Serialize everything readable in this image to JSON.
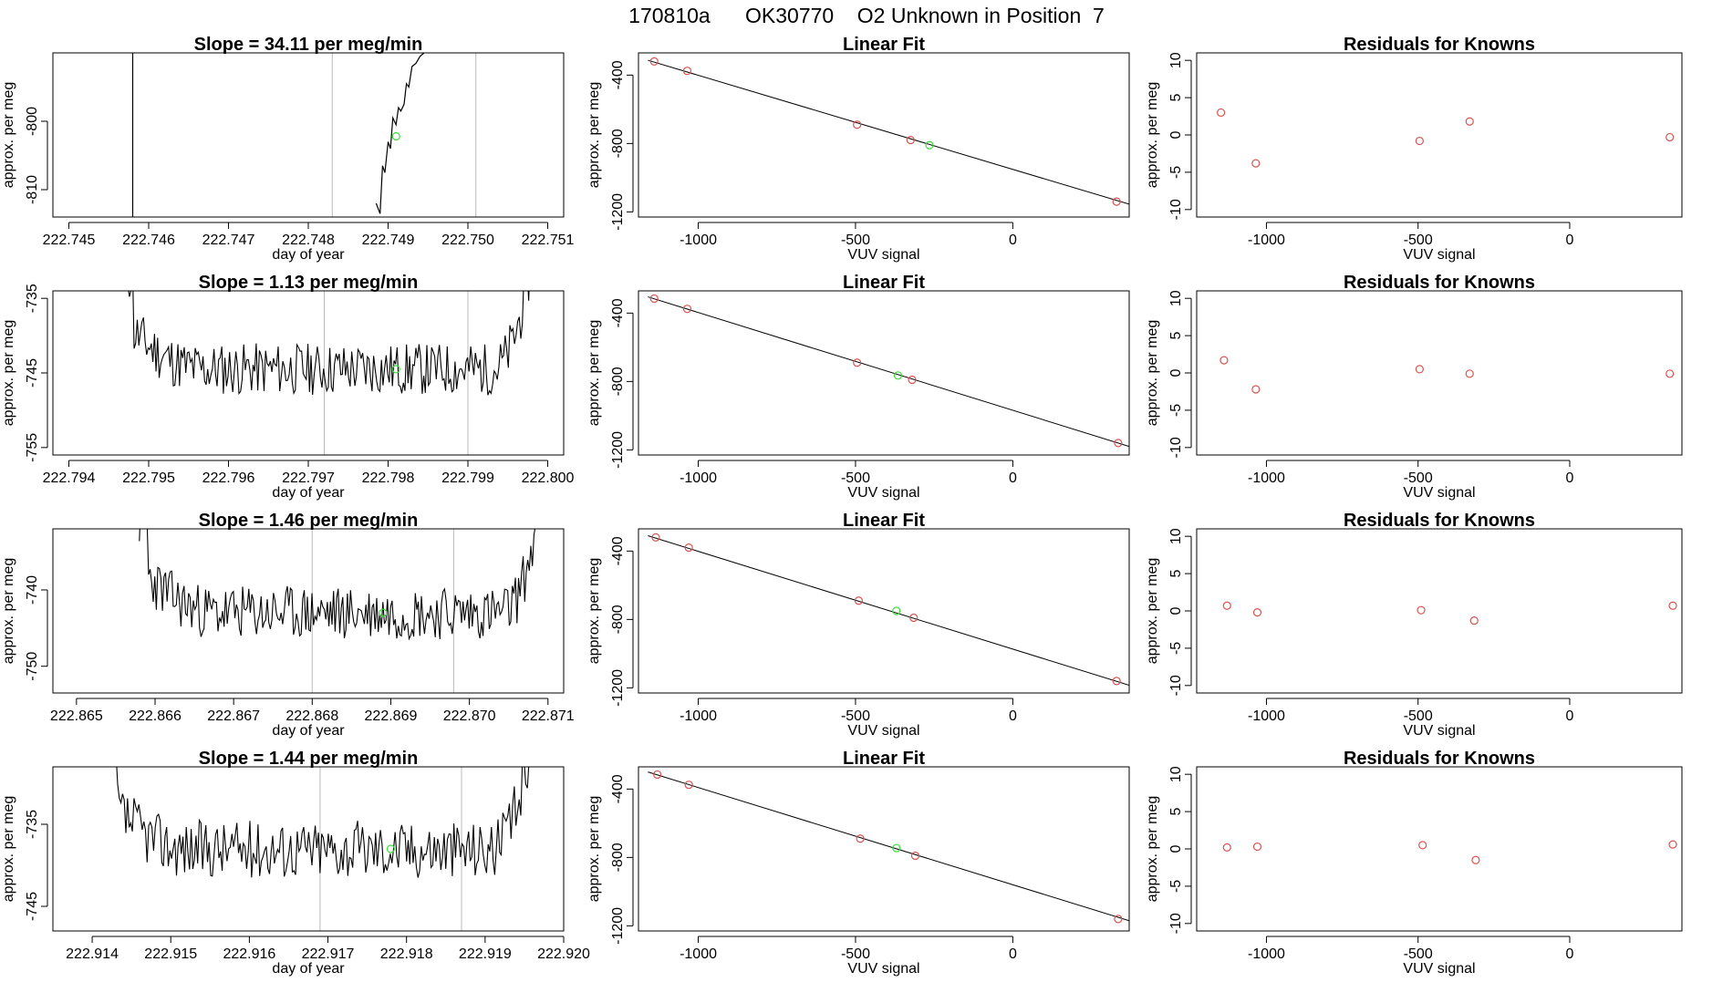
{
  "main_title": "170810a      OK30770    O2 Unknown in Position  7",
  "colors": {
    "known": "#d9534f",
    "unknown": "#3adf3a",
    "line": "#000000",
    "guide": "#bbbbbb"
  },
  "chart_data": [
    {
      "type": "line",
      "panel": "timeseries",
      "row": 1,
      "title": "Slope =  34.11  per meg/min",
      "xlabel": "day of year",
      "ylabel": "approx. per meg",
      "xlim": [
        222.7448,
        222.7512
      ],
      "ylim": [
        -814,
        -790
      ],
      "xticks": [
        222.745,
        222.746,
        222.747,
        222.748,
        222.749,
        222.75,
        222.751
      ],
      "xtick_labels": [
        "222.745",
        "222.746",
        "222.747",
        "222.748",
        "222.749",
        "222.750",
        "222.751"
      ],
      "yticks": [
        -800,
        -810
      ],
      "ytick_labels": [
        "-800",
        "-810"
      ],
      "vlines": [
        222.7483,
        222.7501
      ],
      "series": [
        {
          "x": [
            222.7458,
            222.7458
          ],
          "y": [
            -780,
            -820
          ]
        },
        {
          "x": [
            222.74885,
            222.7489,
            222.74893,
            222.74896,
            222.749,
            222.74903,
            222.74906,
            222.7491,
            222.74913,
            222.74916,
            222.7492,
            222.74923,
            222.74926,
            222.7493,
            222.74935,
            222.7494,
            222.74945
          ],
          "y": [
            -812,
            -813.5,
            -806.5,
            -807.5,
            -803,
            -804,
            -799.5,
            -800.5,
            -798,
            -798.5,
            -797.5,
            -794.5,
            -795,
            -792,
            -791.5,
            -790.5,
            -790
          ]
        }
      ],
      "unknown_points": [
        {
          "x": 222.7491,
          "y": -802.2
        }
      ]
    },
    {
      "type": "scatter",
      "panel": "fit",
      "row": 1,
      "title": "Linear Fit",
      "xlabel": "VUV signal",
      "ylabel": "approx. per meg",
      "xlim": [
        -1190,
        370
      ],
      "ylim": [
        -1230,
        -270
      ],
      "xticks": [
        -1000,
        -500,
        0
      ],
      "xtick_labels": [
        "-1000",
        "-500",
        "0"
      ],
      "yticks": [
        -400,
        -800,
        -1200
      ],
      "ytick_labels": [
        "-400",
        "-800",
        "-1200"
      ],
      "fit_line": {
        "x": [
          -1160,
          370
        ],
        "y": [
          -313,
          -1155
        ]
      },
      "known_points": [
        {
          "x": -1140,
          "y": -320
        },
        {
          "x": -1035,
          "y": -375
        },
        {
          "x": -495,
          "y": -690
        },
        {
          "x": -325,
          "y": -780
        },
        {
          "x": 330,
          "y": -1140
        }
      ],
      "unknown_points": [
        {
          "x": -265,
          "y": -810
        }
      ]
    },
    {
      "type": "scatter",
      "panel": "residuals",
      "row": 1,
      "title": "Residuals for Knowns",
      "xlabel": "VUV signal",
      "ylabel": "approx. per meg",
      "xlim": [
        -1230,
        370
      ],
      "ylim": [
        -11,
        11
      ],
      "xticks": [
        -1000,
        -500,
        0
      ],
      "xtick_labels": [
        "-1000",
        "-500",
        "0"
      ],
      "yticks": [
        10,
        5,
        0,
        -5,
        -10
      ],
      "ytick_labels": [
        "10",
        "5",
        "0",
        "-5",
        "-10"
      ],
      "known_points": [
        {
          "x": -1150,
          "y": 3
        },
        {
          "x": -1035,
          "y": -3.8
        },
        {
          "x": -495,
          "y": -0.8
        },
        {
          "x": -330,
          "y": 1.8
        },
        {
          "x": 330,
          "y": -0.3
        }
      ]
    },
    {
      "type": "line",
      "panel": "timeseries",
      "row": 2,
      "title": "Slope =  1.13  per meg/min",
      "xlabel": "day of year",
      "ylabel": "approx. per meg",
      "xlim": [
        222.7938,
        222.8002
      ],
      "ylim": [
        -756,
        -734
      ],
      "xticks": [
        222.794,
        222.795,
        222.796,
        222.797,
        222.798,
        222.799,
        222.8
      ],
      "xtick_labels": [
        "222.794",
        "222.795",
        "222.796",
        "222.797",
        "222.798",
        "222.799",
        "222.800"
      ],
      "yticks": [
        -735,
        -745,
        -755
      ],
      "ytick_labels": [
        "-735",
        "-745",
        "-755"
      ],
      "vlines": [
        222.7972,
        222.799
      ],
      "noise": {
        "start": 222.7947,
        "end": 222.7998,
        "floor": -744.5,
        "edge_top": -734,
        "amp": 2.2,
        "seed": 11
      },
      "unknown_points": [
        {
          "x": 222.7981,
          "y": -744.5
        }
      ]
    },
    {
      "type": "scatter",
      "panel": "fit",
      "row": 2,
      "title": "Linear Fit",
      "xlabel": "VUV signal",
      "ylabel": "approx. per meg",
      "xlim": [
        -1190,
        370
      ],
      "ylim": [
        -1230,
        -270
      ],
      "xticks": [
        -1000,
        -500,
        0
      ],
      "xtick_labels": [
        "-1000",
        "-500",
        "0"
      ],
      "yticks": [
        -400,
        -800,
        -1200
      ],
      "ytick_labels": [
        "-400",
        "-800",
        "-1200"
      ],
      "fit_line": {
        "x": [
          -1160,
          370
        ],
        "y": [
          -305,
          -1180
        ]
      },
      "known_points": [
        {
          "x": -1140,
          "y": -315
        },
        {
          "x": -1035,
          "y": -375
        },
        {
          "x": -495,
          "y": -690
        },
        {
          "x": -320,
          "y": -790
        },
        {
          "x": 335,
          "y": -1160
        }
      ],
      "unknown_points": [
        {
          "x": -365,
          "y": -765
        }
      ]
    },
    {
      "type": "scatter",
      "panel": "residuals",
      "row": 2,
      "title": "Residuals for Knowns",
      "xlabel": "VUV signal",
      "ylabel": "approx. per meg",
      "xlim": [
        -1230,
        370
      ],
      "ylim": [
        -11,
        11
      ],
      "xticks": [
        -1000,
        -500,
        0
      ],
      "xtick_labels": [
        "-1000",
        "-500",
        "0"
      ],
      "yticks": [
        10,
        5,
        0,
        -5,
        -10
      ],
      "ytick_labels": [
        "10",
        "5",
        "0",
        "-5",
        "-10"
      ],
      "known_points": [
        {
          "x": -1140,
          "y": 1.7
        },
        {
          "x": -1035,
          "y": -2.2
        },
        {
          "x": -495,
          "y": 0.5
        },
        {
          "x": -330,
          "y": -0.1
        },
        {
          "x": 330,
          "y": -0.1
        }
      ]
    },
    {
      "type": "line",
      "panel": "timeseries",
      "row": 3,
      "title": "Slope =  1.46  per meg/min",
      "xlabel": "day of year",
      "ylabel": "approx. per meg",
      "xlim": [
        222.8647,
        222.8712
      ],
      "ylim": [
        -753.5,
        -732
      ],
      "xticks": [
        222.865,
        222.866,
        222.867,
        222.868,
        222.869,
        222.87,
        222.871
      ],
      "xtick_labels": [
        "222.865",
        "222.866",
        "222.867",
        "222.868",
        "222.869",
        "222.870",
        "222.871"
      ],
      "yticks": [
        -740,
        -750
      ],
      "ytick_labels": [
        "-740",
        "-750"
      ],
      "vlines": [
        222.868,
        222.8698
      ],
      "noise": {
        "start": 222.8658,
        "end": 222.8709,
        "floor": -743,
        "edge_top": -733,
        "amp": 2.2,
        "seed": 23
      },
      "unknown_points": [
        {
          "x": 222.8689,
          "y": -743
        }
      ]
    },
    {
      "type": "scatter",
      "panel": "fit",
      "row": 3,
      "title": "Linear Fit",
      "xlabel": "VUV signal",
      "ylabel": "approx. per meg",
      "xlim": [
        -1190,
        370
      ],
      "ylim": [
        -1230,
        -270
      ],
      "xticks": [
        -1000,
        -500,
        0
      ],
      "xtick_labels": [
        "-1000",
        "-500",
        "0"
      ],
      "yticks": [
        -400,
        -800,
        -1200
      ],
      "ytick_labels": [
        "-400",
        "-800",
        "-1200"
      ],
      "fit_line": {
        "x": [
          -1160,
          370
        ],
        "y": [
          -310,
          -1185
        ]
      },
      "known_points": [
        {
          "x": -1135,
          "y": -320
        },
        {
          "x": -1030,
          "y": -380
        },
        {
          "x": -490,
          "y": -690
        },
        {
          "x": -315,
          "y": -790
        },
        {
          "x": 330,
          "y": -1160
        }
      ],
      "unknown_points": [
        {
          "x": -370,
          "y": -750
        }
      ]
    },
    {
      "type": "scatter",
      "panel": "residuals",
      "row": 3,
      "title": "Residuals for Knowns",
      "xlabel": "VUV signal",
      "ylabel": "approx. per meg",
      "xlim": [
        -1230,
        370
      ],
      "ylim": [
        -11,
        11
      ],
      "xticks": [
        -1000,
        -500,
        0
      ],
      "xtick_labels": [
        "-1000",
        "-500",
        "0"
      ],
      "yticks": [
        10,
        5,
        0,
        -5,
        -10
      ],
      "ytick_labels": [
        "10",
        "5",
        "0",
        "-5",
        "-10"
      ],
      "known_points": [
        {
          "x": -1130,
          "y": 0.7
        },
        {
          "x": -1030,
          "y": -0.2
        },
        {
          "x": -490,
          "y": 0.1
        },
        {
          "x": -315,
          "y": -1.3
        },
        {
          "x": 340,
          "y": 0.7
        }
      ]
    },
    {
      "type": "line",
      "panel": "timeseries",
      "row": 4,
      "title": "Slope =  1.44  per meg/min",
      "xlabel": "day of year",
      "ylabel": "approx. per meg",
      "xlim": [
        222.9135,
        222.92
      ],
      "ylim": [
        -748,
        -728
      ],
      "xticks": [
        222.914,
        222.915,
        222.916,
        222.917,
        222.918,
        222.919,
        222.92
      ],
      "xtick_labels": [
        "222.914",
        "222.915",
        "222.916",
        "222.917",
        "222.918",
        "222.919",
        "222.920"
      ],
      "yticks": [
        -735,
        -745
      ],
      "ytick_labels": [
        "-735",
        "-745"
      ],
      "vlines": [
        222.9169,
        222.9187
      ],
      "noise": {
        "start": 222.9142,
        "end": 222.9196,
        "floor": -738,
        "edge_top": -728,
        "amp": 2.2,
        "seed": 37
      },
      "unknown_points": [
        {
          "x": 222.9178,
          "y": -738
        }
      ]
    },
    {
      "type": "scatter",
      "panel": "fit",
      "row": 4,
      "title": "Linear Fit",
      "xlabel": "VUV signal",
      "ylabel": "approx. per meg",
      "xlim": [
        -1190,
        370
      ],
      "ylim": [
        -1230,
        -270
      ],
      "xticks": [
        -1000,
        -500,
        0
      ],
      "xtick_labels": [
        "-1000",
        "-500",
        "0"
      ],
      "yticks": [
        -400,
        -800,
        -1200
      ],
      "ytick_labels": [
        "-400",
        "-800",
        "-1200"
      ],
      "fit_line": {
        "x": [
          -1160,
          370
        ],
        "y": [
          -300,
          -1170
        ]
      },
      "known_points": [
        {
          "x": -1130,
          "y": -315
        },
        {
          "x": -1030,
          "y": -375
        },
        {
          "x": -485,
          "y": -690
        },
        {
          "x": -310,
          "y": -790
        },
        {
          "x": 335,
          "y": -1160
        }
      ],
      "unknown_points": [
        {
          "x": -370,
          "y": -745
        }
      ]
    },
    {
      "type": "scatter",
      "panel": "residuals",
      "row": 4,
      "title": "Residuals for Knowns",
      "xlabel": "VUV signal",
      "ylabel": "approx. per meg",
      "xlim": [
        -1230,
        370
      ],
      "ylim": [
        -11,
        11
      ],
      "xticks": [
        -1000,
        -500,
        0
      ],
      "xtick_labels": [
        "-1000",
        "-500",
        "0"
      ],
      "yticks": [
        10,
        5,
        0,
        -5,
        -10
      ],
      "ytick_labels": [
        "10",
        "5",
        "0",
        "-5",
        "-10"
      ],
      "known_points": [
        {
          "x": -1130,
          "y": 0.2
        },
        {
          "x": -1030,
          "y": 0.3
        },
        {
          "x": -485,
          "y": 0.5
        },
        {
          "x": -310,
          "y": -1.5
        },
        {
          "x": 340,
          "y": 0.6
        }
      ]
    }
  ]
}
